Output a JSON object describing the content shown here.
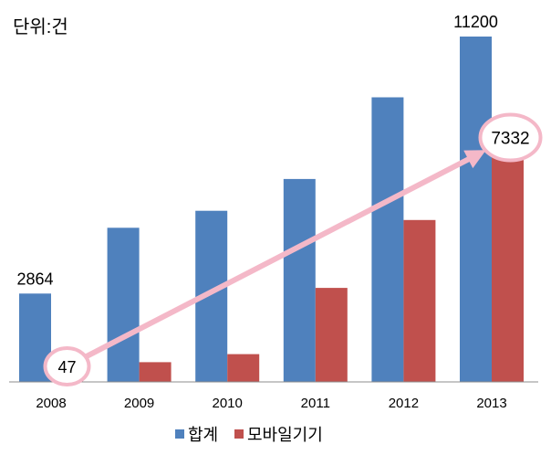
{
  "chart_data": {
    "type": "bar",
    "unit_label": "단위:건",
    "categories": [
      "2008",
      "2009",
      "2010",
      "2011",
      "2012",
      "2013"
    ],
    "series": [
      {
        "name": "합계",
        "values": [
          2864,
          5000,
          5550,
          6580,
          9230,
          11200
        ],
        "color": "#4f81bd"
      },
      {
        "name": "모바일기기",
        "values": [
          47,
          640,
          900,
          3050,
          5250,
          7332
        ],
        "color": "#c0504d"
      }
    ],
    "data_labels": [
      {
        "series": 0,
        "index": 0,
        "text": "2864"
      },
      {
        "series": 0,
        "index": 5,
        "text": "11200"
      },
      {
        "series": 1,
        "index": 0,
        "text": "47"
      },
      {
        "series": 1,
        "index": 5,
        "text": "7332"
      }
    ],
    "ylim": [
      0,
      11200
    ],
    "grid": false,
    "legend_position": "bottom",
    "annotation": {
      "type": "arrow",
      "from": "47",
      "to": "7332",
      "color": "#f4b8c8"
    }
  }
}
